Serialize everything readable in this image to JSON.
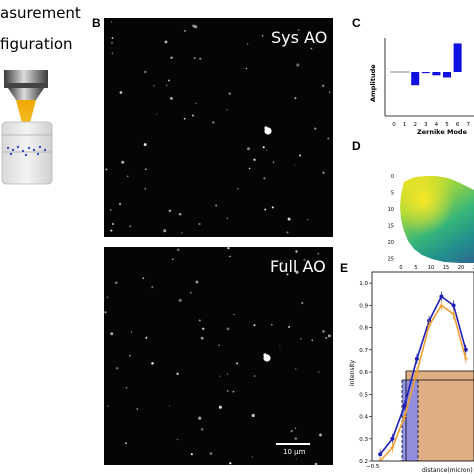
{
  "panel_a": {
    "title_line1": "asurement",
    "title_line2": "figuration"
  },
  "panel_b": {
    "letter": "B",
    "top_label": "Sys AO",
    "bottom_label": "Full AO",
    "scale_bar_label": "10 μm"
  },
  "panel_c": {
    "letter": "C",
    "ylabel": "Amplitude",
    "xlabel": "Zernike Mode",
    "tick_labels": [
      "0",
      "1",
      "2",
      "3",
      "4",
      "5",
      "6",
      "7"
    ]
  },
  "panel_d": {
    "letter": "D",
    "y_ticks": [
      "0",
      "5",
      "10",
      "15",
      "20",
      "25"
    ],
    "x_ticks": [
      "0",
      "5",
      "10",
      "15",
      "20",
      "25"
    ]
  },
  "panel_e": {
    "letter": "E",
    "ylabel": "intensity",
    "xlabel": "distance(micron)",
    "y_ticks": [
      "1.0",
      "0.9",
      "0.8",
      "0.7",
      "0.6",
      "0.5",
      "0.4",
      "0.3",
      "0.2"
    ],
    "x_tick_first": "−0.5",
    "colors": {
      "blue": "#1f1fb8",
      "orange": "#f0a030",
      "fill_orange": "#d9a070",
      "fill_blue": "#8a8ae6"
    }
  },
  "chart_data": [
    {
      "type": "bar",
      "xlabel": "Zernike Mode",
      "ylabel": "Amplitude",
      "categories": [
        "0",
        "1",
        "2",
        "3",
        "4",
        "5",
        "6",
        "7"
      ],
      "values": [
        0,
        0,
        -0.6,
        -0.05,
        -0.15,
        -0.25,
        1.3,
        0
      ],
      "colors": {
        "bar": "#1010e0",
        "zero_line": "#808080"
      }
    },
    {
      "type": "line",
      "xlabel": "distance(micron)",
      "ylabel": "intensity",
      "ylim": [
        0.2,
        1.05
      ],
      "series": [
        {
          "color": "#1f1fb8",
          "x": [
            -0.4,
            -0.25,
            -0.1,
            0.05,
            0.2,
            0.35,
            0.5,
            0.65
          ],
          "y": [
            0.23,
            0.3,
            0.45,
            0.66,
            0.83,
            0.94,
            0.9,
            0.7
          ]
        },
        {
          "color": "#f0a030",
          "x": [
            -0.4,
            -0.25,
            -0.1,
            0.05,
            0.2,
            0.35,
            0.5,
            0.65
          ],
          "y": [
            0.2,
            0.26,
            0.4,
            0.6,
            0.81,
            0.9,
            0.86,
            0.66
          ]
        }
      ]
    }
  ]
}
